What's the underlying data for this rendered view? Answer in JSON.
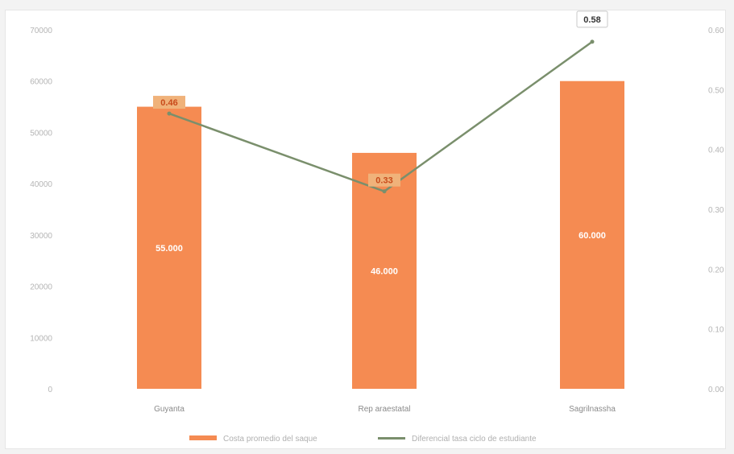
{
  "chart_data": {
    "type": "bar",
    "categories": [
      "Guyanta",
      "Rep araestatal",
      "Sagrilnassha"
    ],
    "series": [
      {
        "name": "Costa promedio del saque",
        "type": "bar",
        "axis": "left",
        "color": "#f58b52",
        "values": [
          55000,
          46000,
          60000
        ],
        "value_labels": [
          "55.000",
          "46.000",
          "60.000"
        ]
      },
      {
        "name": "Diferencial tasa ciclo de estudiante",
        "type": "line",
        "axis": "right",
        "color": "#7a8f6c",
        "values": [
          0.46,
          0.33,
          0.58
        ],
        "value_labels": [
          "0.46",
          "0.33",
          "0.58"
        ]
      }
    ],
    "y_left": {
      "ticks": [
        "0",
        "10000",
        "20000",
        "30000",
        "40000",
        "50000",
        "60000",
        "70000"
      ],
      "range": [
        0,
        70000
      ]
    },
    "y_right": {
      "ticks": [
        "0.00",
        "0.10",
        "0.20",
        "0.30",
        "0.40",
        "0.50",
        "0.60"
      ],
      "range": [
        0,
        0.6
      ]
    },
    "legend_position": "bottom",
    "grid": false
  }
}
